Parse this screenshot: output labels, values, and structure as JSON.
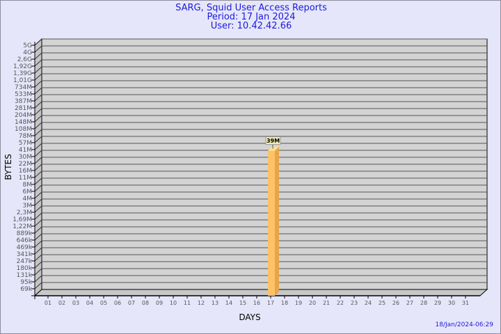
{
  "chart_data": {
    "type": "bar",
    "title": "SARG, Squid User Access Reports",
    "subtitle_lines": [
      "Period: 17 Jan 2024",
      "User: 10.42.42.66"
    ],
    "xlabel": "DAYS",
    "ylabel": "BYTES",
    "y_scale": "custom-log",
    "y_tick_labels": [
      "5G",
      "4G",
      "2,6G",
      "1,92G",
      "1,39G",
      "1,01G",
      "734M",
      "533M",
      "387M",
      "281M",
      "204M",
      "148M",
      "108M",
      "78M",
      "57M",
      "41M",
      "30M",
      "22M",
      "16M",
      "11M",
      "8M",
      "6M",
      "4M",
      "3M",
      "2,3M",
      "1,69M",
      "1,22M",
      "889k",
      "646k",
      "469k",
      "341k",
      "247k",
      "180k",
      "131k",
      "95k",
      "69k"
    ],
    "y_tick_values": [
      5000000000.0,
      4000000000.0,
      2600000000.0,
      1920000000.0,
      1390000000.0,
      1010000000.0,
      734000000.0,
      533000000.0,
      387000000.0,
      281000000.0,
      204000000.0,
      148000000.0,
      108000000.0,
      78000000.0,
      57000000.0,
      41000000.0,
      30000000.0,
      22000000.0,
      16000000.0,
      11000000.0,
      8000000.0,
      6000000.0,
      4000000.0,
      3000000.0,
      2300000.0,
      1690000.0,
      1220000.0,
      889000.0,
      646000.0,
      469000.0,
      341000.0,
      247000.0,
      180000.0,
      131000.0,
      95000.0,
      69000.0
    ],
    "categories": [
      "01",
      "02",
      "03",
      "04",
      "05",
      "06",
      "07",
      "08",
      "09",
      "10",
      "11",
      "12",
      "13",
      "14",
      "15",
      "16",
      "17",
      "18",
      "19",
      "20",
      "21",
      "22",
      "23",
      "24",
      "25",
      "26",
      "27",
      "28",
      "29",
      "30",
      "31"
    ],
    "series": [
      {
        "points": [
          {
            "x": "17",
            "y": 39000000,
            "label": "39M"
          }
        ]
      }
    ],
    "grid": true,
    "legend": "none",
    "colors": {
      "bar_front": "#ffc266",
      "bar_side": "#e6a64a",
      "bar_top": "#ffe08a",
      "wall": "#d3d3d3",
      "text": "#1a1adc"
    }
  },
  "footer": {
    "timestamp": "18/Jan/2024-06:29"
  }
}
